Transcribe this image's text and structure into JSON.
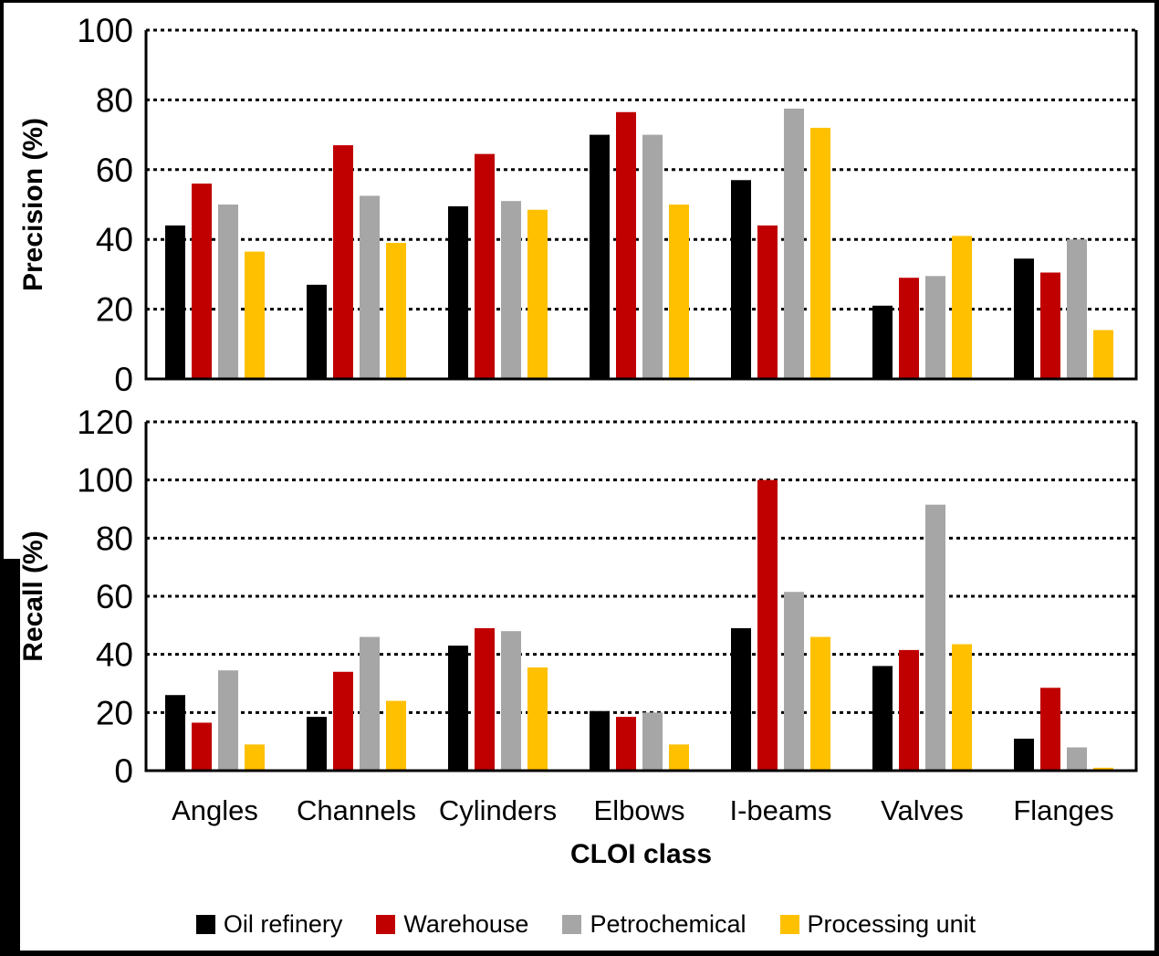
{
  "figure": {
    "description": "Two stacked grouped bar charts: detection precision and recall per CLOI class across four industrial scenes",
    "background_color": "#FFFFFF",
    "frame_color": "#000000",
    "grid_style": "dotted-horizontal",
    "legend_position": "bottom"
  },
  "chart_data": [
    {
      "type": "bar",
      "title": "",
      "xlabel": "",
      "ylabel": "Precision (%)",
      "ylim": [
        0,
        100
      ],
      "ytick_step": 20,
      "yticks": [
        0,
        20,
        40,
        60,
        80,
        100
      ],
      "grid": "dotted-horizontal",
      "legend_position": "bottom-shared",
      "categories": [
        "Angles",
        "Channels",
        "Cylinders",
        "Elbows",
        "I-beams",
        "Valves",
        "Flanges"
      ],
      "series": [
        {
          "name": "Oil refinery",
          "color": "#000000",
          "values": [
            44,
            27,
            49.5,
            70,
            57,
            21,
            34.5
          ]
        },
        {
          "name": "Warehouse",
          "color": "#C00000",
          "values": [
            56,
            67,
            64.5,
            76.5,
            44,
            29,
            30.5
          ]
        },
        {
          "name": "Petrochemical",
          "color": "#A6A6A6",
          "values": [
            50,
            52.5,
            51,
            70,
            77.5,
            29.5,
            40
          ]
        },
        {
          "name": "Processing unit",
          "color": "#FFC000",
          "values": [
            36.5,
            39,
            48.5,
            50,
            72,
            41,
            14
          ]
        }
      ],
      "show_category_labels": false
    },
    {
      "type": "bar",
      "title": "",
      "xlabel": "CLOI class",
      "ylabel": "Recall (%)",
      "ylim": [
        0,
        120
      ],
      "ytick_step": 20,
      "yticks": [
        0,
        20,
        40,
        60,
        80,
        100,
        120
      ],
      "grid": "dotted-horizontal",
      "legend_position": "bottom-shared",
      "categories": [
        "Angles",
        "Channels",
        "Cylinders",
        "Elbows",
        "I-beams",
        "Valves",
        "Flanges"
      ],
      "series": [
        {
          "name": "Oil refinery",
          "color": "#000000",
          "values": [
            26,
            18.5,
            43,
            20.5,
            49,
            36,
            11
          ]
        },
        {
          "name": "Warehouse",
          "color": "#C00000",
          "values": [
            16.5,
            34,
            49,
            18.5,
            100,
            41.5,
            28.5
          ]
        },
        {
          "name": "Petrochemical",
          "color": "#A6A6A6",
          "values": [
            34.5,
            46,
            48,
            20,
            61.5,
            91.5,
            8
          ]
        },
        {
          "name": "Processing unit",
          "color": "#FFC000",
          "values": [
            9,
            24,
            35.5,
            9,
            46,
            43.5,
            1
          ]
        }
      ],
      "show_category_labels": true
    }
  ],
  "legend": {
    "items": [
      {
        "label": "Oil refinery",
        "color": "#000000"
      },
      {
        "label": "Warehouse",
        "color": "#C00000"
      },
      {
        "label": "Petrochemical",
        "color": "#A6A6A6"
      },
      {
        "label": "Processing unit",
        "color": "#FFC000"
      }
    ]
  }
}
